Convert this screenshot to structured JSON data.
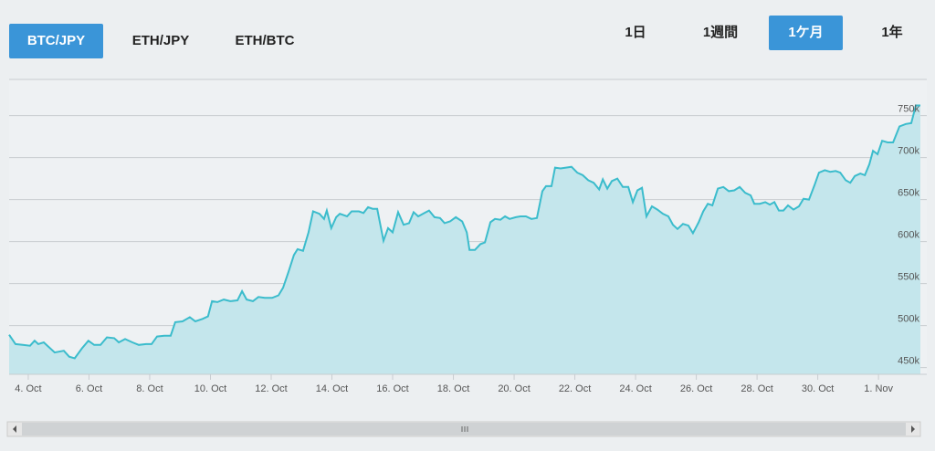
{
  "pair_tabs": [
    {
      "label": "BTC/JPY",
      "selected": true
    },
    {
      "label": "ETH/JPY",
      "selected": false
    },
    {
      "label": "ETH/BTC",
      "selected": false
    }
  ],
  "range_tabs": [
    {
      "label": "1日",
      "selected": false
    },
    {
      "label": "1週間",
      "selected": false
    },
    {
      "label": "1ケ月",
      "selected": true
    },
    {
      "label": "1年",
      "selected": false
    }
  ],
  "chart_data": {
    "type": "area",
    "color": "#3bbccc",
    "fill_color": "#c4e6ec",
    "grid": true,
    "x": [
      3.37,
      3.58,
      3.82,
      4.06,
      4.21,
      4.33,
      4.51,
      4.66,
      4.87,
      5.17,
      5.35,
      5.53,
      5.77,
      5.98,
      6.17,
      6.38,
      6.59,
      6.83,
      6.98,
      7.19,
      7.43,
      7.64,
      7.88,
      8.06,
      8.24,
      8.48,
      8.69,
      8.84,
      9.08,
      9.32,
      9.5,
      9.74,
      9.92,
      10.05,
      10.23,
      10.44,
      10.65,
      10.89,
      11.04,
      11.19,
      11.4,
      11.58,
      11.79,
      12.03,
      12.24,
      12.39,
      12.57,
      12.75,
      12.87,
      13.05,
      13.23,
      13.38,
      13.59,
      13.74,
      13.83,
      13.98,
      14.14,
      14.26,
      14.5,
      14.65,
      14.89,
      15.04,
      15.19,
      15.34,
      15.49,
      15.7,
      15.85,
      16.0,
      16.18,
      16.36,
      16.54,
      16.69,
      16.84,
      17.05,
      17.2,
      17.38,
      17.56,
      17.71,
      17.89,
      18.08,
      18.29,
      18.44,
      18.53,
      18.71,
      18.89,
      19.04,
      19.22,
      19.37,
      19.55,
      19.7,
      19.85,
      20.06,
      20.21,
      20.39,
      20.57,
      20.75,
      20.93,
      21.05,
      21.23,
      21.35,
      21.53,
      21.71,
      21.89,
      22.08,
      22.26,
      22.44,
      22.62,
      22.8,
      22.92,
      23.07,
      23.22,
      23.4,
      23.58,
      23.76,
      23.91,
      24.06,
      24.21,
      24.36,
      24.54,
      24.72,
      24.9,
      25.08,
      25.23,
      25.38,
      25.56,
      25.74,
      25.89,
      26.08,
      26.23,
      26.38,
      26.53,
      26.71,
      26.89,
      27.07,
      27.25,
      27.43,
      27.61,
      27.79,
      27.91,
      28.09,
      28.27,
      28.42,
      28.57,
      28.72,
      28.87,
      29.02,
      29.2,
      29.38,
      29.53,
      29.71,
      29.89,
      30.04,
      30.23,
      30.41,
      30.59,
      30.74,
      30.92,
      31.07,
      31.22,
      31.4,
      31.55,
      31.7,
      31.82,
      31.97,
      32.12,
      32.3,
      32.48,
      32.69,
      32.9,
      33.08,
      33.23,
      33.38
    ],
    "values": [
      489000,
      478000,
      477000,
      476000,
      482000,
      478000,
      480000,
      475000,
      468000,
      470000,
      463000,
      461000,
      473000,
      482000,
      477000,
      477000,
      486000,
      485000,
      480000,
      484000,
      480000,
      477000,
      478000,
      478000,
      487000,
      488000,
      488000,
      504000,
      505000,
      510000,
      505000,
      508000,
      511000,
      529000,
      528000,
      531000,
      529000,
      530000,
      541000,
      531000,
      529000,
      534000,
      533000,
      533000,
      536000,
      545000,
      564000,
      584000,
      591000,
      589000,
      611000,
      636000,
      633000,
      627000,
      637000,
      616000,
      629000,
      633000,
      630000,
      636000,
      636000,
      634000,
      641000,
      639000,
      639000,
      601000,
      616000,
      611000,
      635000,
      620000,
      622000,
      635000,
      630000,
      634000,
      637000,
      629000,
      628000,
      622000,
      624000,
      629000,
      624000,
      611000,
      590000,
      590000,
      597000,
      599000,
      623000,
      627000,
      626000,
      630000,
      627000,
      629000,
      630000,
      630000,
      627000,
      628000,
      660000,
      666000,
      666000,
      688000,
      687000,
      688000,
      689000,
      682000,
      679000,
      673000,
      670000,
      662000,
      674000,
      663000,
      672000,
      675000,
      665000,
      665000,
      647000,
      661000,
      664000,
      630000,
      642000,
      638000,
      633000,
      630000,
      620000,
      615000,
      621000,
      619000,
      610000,
      623000,
      636000,
      645000,
      643000,
      663000,
      665000,
      660000,
      661000,
      665000,
      658000,
      655000,
      645000,
      645000,
      647000,
      644000,
      647000,
      637000,
      637000,
      643000,
      638000,
      642000,
      651000,
      650000,
      667000,
      682000,
      685000,
      683000,
      684000,
      682000,
      673000,
      670000,
      678000,
      681000,
      679000,
      692000,
      708000,
      704000,
      720000,
      718000,
      718000,
      737000,
      740000,
      741000,
      762000,
      762000
    ],
    "xlim": [
      3.37,
      33.59
    ],
    "xticks": [
      {
        "value": 4,
        "label": "4. Oct"
      },
      {
        "value": 6,
        "label": "6. Oct"
      },
      {
        "value": 8,
        "label": "8. Oct"
      },
      {
        "value": 10,
        "label": "10. Oct"
      },
      {
        "value": 12,
        "label": "12. Oct"
      },
      {
        "value": 14,
        "label": "14. Oct"
      },
      {
        "value": 16,
        "label": "16. Oct"
      },
      {
        "value": 18,
        "label": "18. Oct"
      },
      {
        "value": 20,
        "label": "20. Oct"
      },
      {
        "value": 22,
        "label": "22. Oct"
      },
      {
        "value": 24,
        "label": "24. Oct"
      },
      {
        "value": 26,
        "label": "26. Oct"
      },
      {
        "value": 28,
        "label": "28. Oct"
      },
      {
        "value": 30,
        "label": "30. Oct"
      },
      {
        "value": 32,
        "label": "1. Nov"
      }
    ],
    "ylim": [
      442000,
      793000
    ],
    "yticks": [
      {
        "value": 450000,
        "label": "450k"
      },
      {
        "value": 500000,
        "label": "500k"
      },
      {
        "value": 550000,
        "label": "550k"
      },
      {
        "value": 600000,
        "label": "600k"
      },
      {
        "value": 650000,
        "label": "650k"
      },
      {
        "value": 700000,
        "label": "700k"
      },
      {
        "value": 750000,
        "label": "750k"
      }
    ]
  }
}
